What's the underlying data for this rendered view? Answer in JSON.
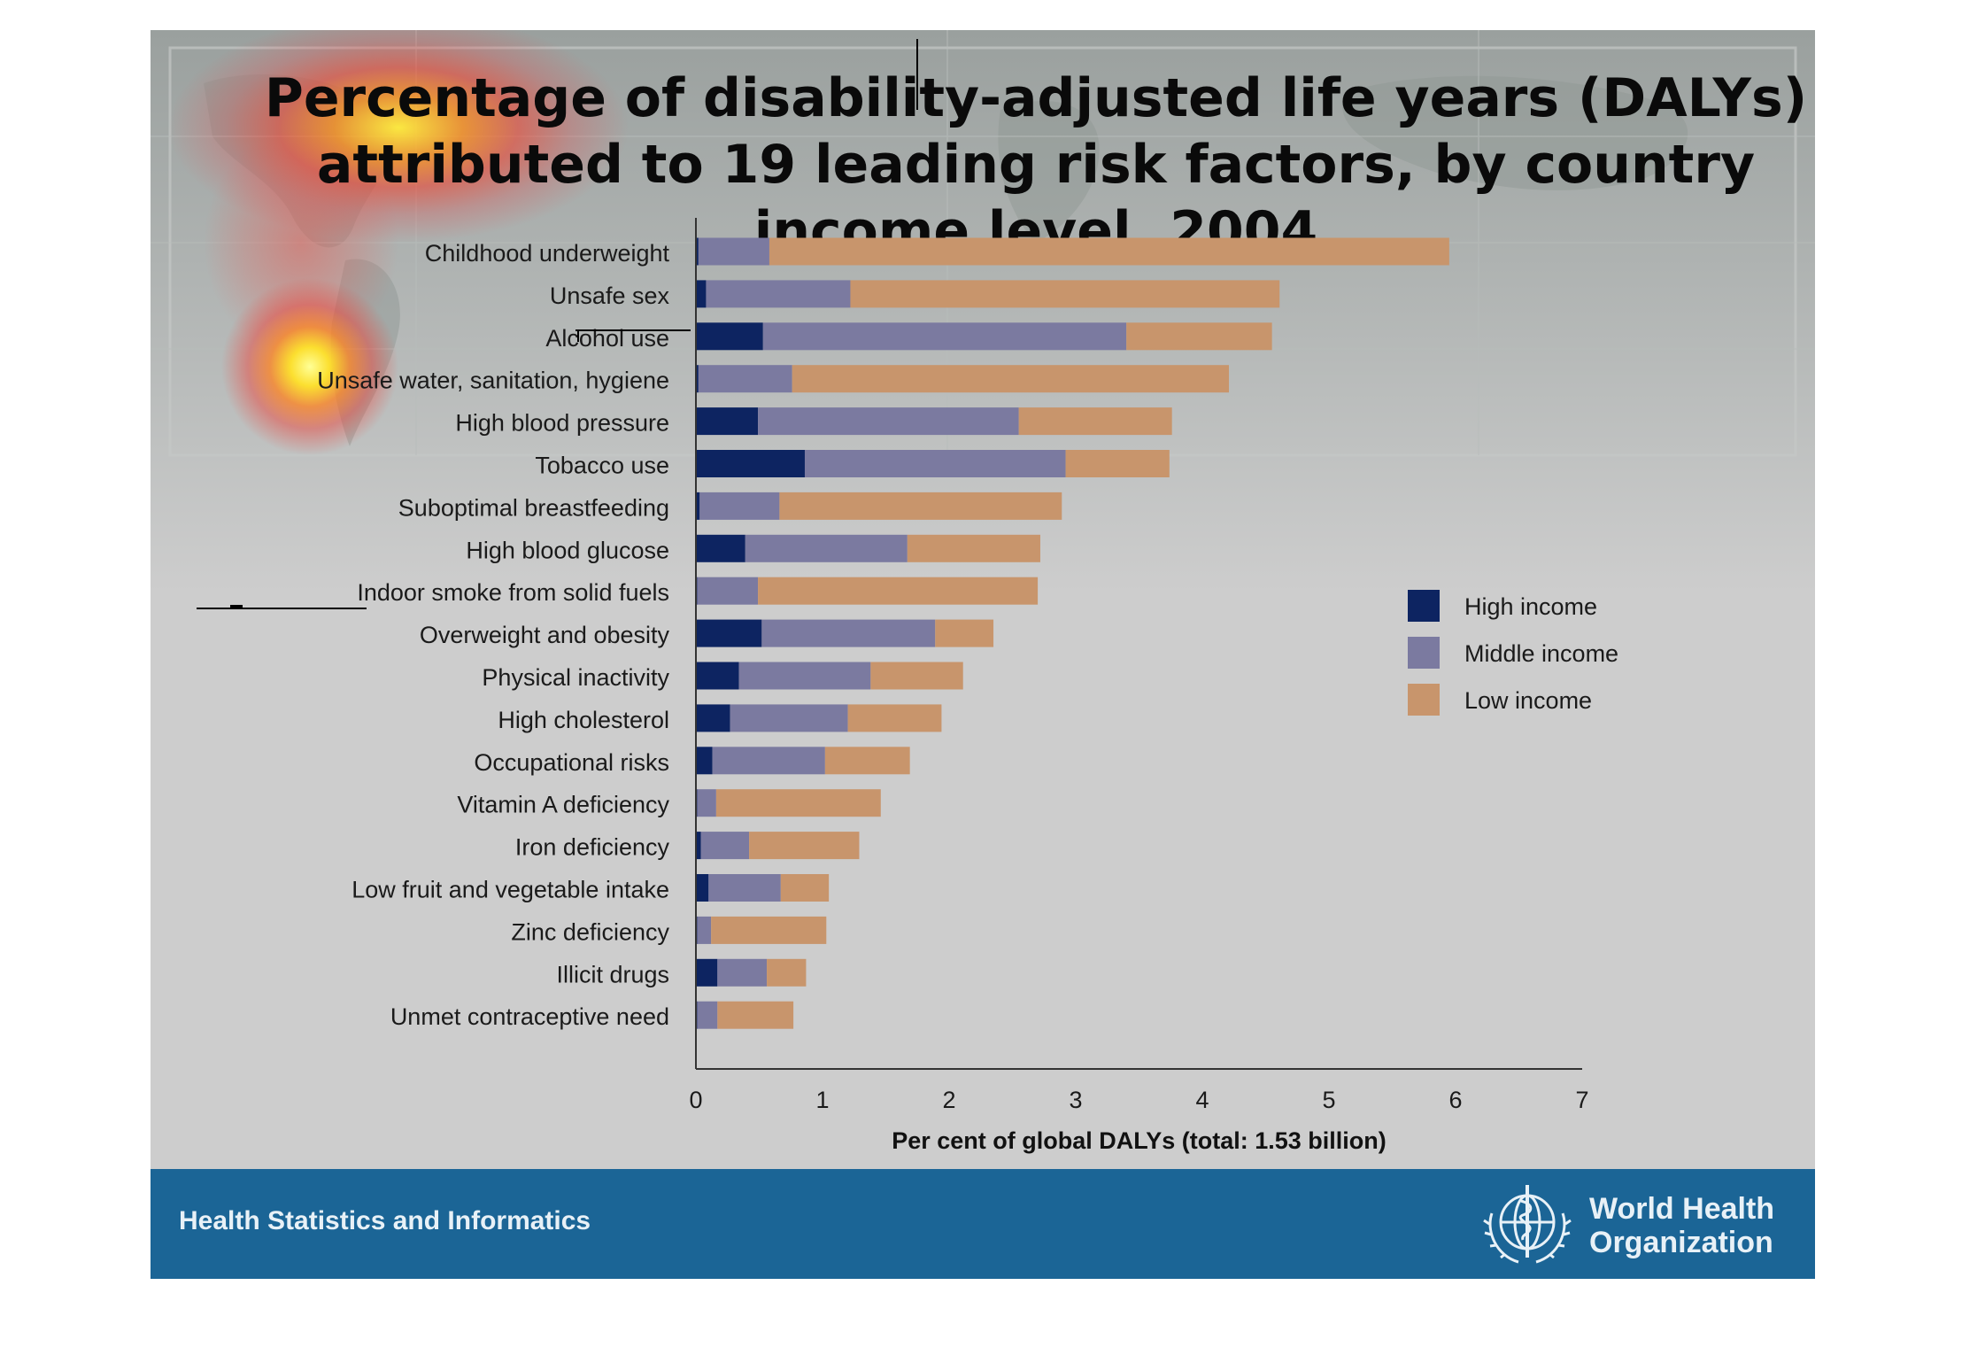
{
  "slide": {
    "title": "Percentage of disability-adjusted life years (DALYs)\nattributed to 19 leading risk factors, by country\nincome level, 2004",
    "footer_text": "Health Statistics and Informatics",
    "org_name": "World Health\nOrganization",
    "logo_icon": "who-emblem-icon"
  },
  "colors": {
    "high_income": "#0d2461",
    "middle_income": "#7b7aa0",
    "low_income": "#c8956c",
    "footer": "#1b6596"
  },
  "chart_data": {
    "type": "bar",
    "orientation": "horizontal",
    "stacked": true,
    "categories": [
      "Childhood underweight",
      "Unsafe sex",
      "Alcohol use",
      "Unsafe water, sanitation, hygiene",
      "High blood pressure",
      "Tobacco use",
      "Suboptimal breastfeeding",
      "High blood glucose",
      "Indoor smoke from solid fuels",
      "Overweight and obesity",
      "Physical inactivity",
      "High cholesterol",
      "Occupational risks",
      "Vitamin A deficiency",
      "Iron deficiency",
      "Low fruit and vegetable intake",
      "Zinc deficiency",
      "Illicit drugs",
      "Unmet contraceptive need"
    ],
    "series": [
      {
        "name": "High income",
        "values": [
          0.02,
          0.08,
          0.53,
          0.02,
          0.49,
          0.86,
          0.03,
          0.39,
          0.01,
          0.52,
          0.34,
          0.27,
          0.13,
          0.01,
          0.04,
          0.1,
          0.01,
          0.17,
          0.01
        ]
      },
      {
        "name": "Middle income",
        "values": [
          0.56,
          1.14,
          2.87,
          0.74,
          2.06,
          2.06,
          0.63,
          1.28,
          0.48,
          1.37,
          1.04,
          0.93,
          0.89,
          0.15,
          0.38,
          0.57,
          0.11,
          0.39,
          0.16
        ]
      },
      {
        "name": "Low income",
        "values": [
          5.37,
          3.39,
          1.15,
          3.45,
          1.21,
          0.82,
          2.23,
          1.05,
          2.21,
          0.46,
          0.73,
          0.74,
          0.67,
          1.3,
          0.87,
          0.38,
          0.91,
          0.31,
          0.6
        ]
      }
    ],
    "xlim": [
      0,
      7
    ],
    "xticks": [
      "0",
      "1",
      "2",
      "3",
      "4",
      "5",
      "6",
      "7"
    ],
    "xlabel": "Per cent of global DALYs (total: 1.53 billion)",
    "ylabel": "",
    "legend": {
      "placement": "right",
      "entries": [
        "High income",
        "Middle income",
        "Low income"
      ]
    },
    "grid": false
  }
}
